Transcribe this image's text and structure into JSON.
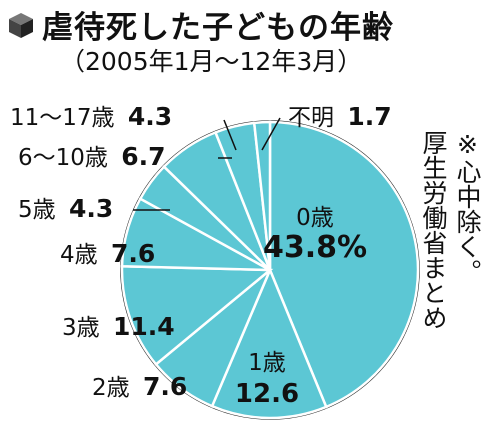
{
  "chart_data": {
    "type": "pie",
    "title": "虐待死した子どもの年齢",
    "subtitle": "（2005年1月〜12年3月）",
    "note": [
      "※心中除く。",
      "厚生労働省まとめ"
    ],
    "unit": "%",
    "slices": [
      {
        "label": "0歳",
        "value": 43.8,
        "value_text": "43.8%"
      },
      {
        "label": "1歳",
        "value": 12.6,
        "value_text": "12.6"
      },
      {
        "label": "2歳",
        "value": 7.6,
        "value_text": "7.6"
      },
      {
        "label": "3歳",
        "value": 11.4,
        "value_text": "11.4"
      },
      {
        "label": "4歳",
        "value": 7.6,
        "value_text": "7.6"
      },
      {
        "label": "5歳",
        "value": 4.3,
        "value_text": "4.3"
      },
      {
        "label": "6〜10歳",
        "value": 6.7,
        "value_text": "6.7"
      },
      {
        "label": "11〜17歳",
        "value": 4.3,
        "value_text": "4.3"
      },
      {
        "label": "不明",
        "value": 1.7,
        "value_text": "1.7"
      }
    ],
    "colors": {
      "slice_fill": "#5cc7d4",
      "slice_stroke": "#ffffff",
      "outline": "#222222"
    },
    "icon": "cube-icon"
  }
}
